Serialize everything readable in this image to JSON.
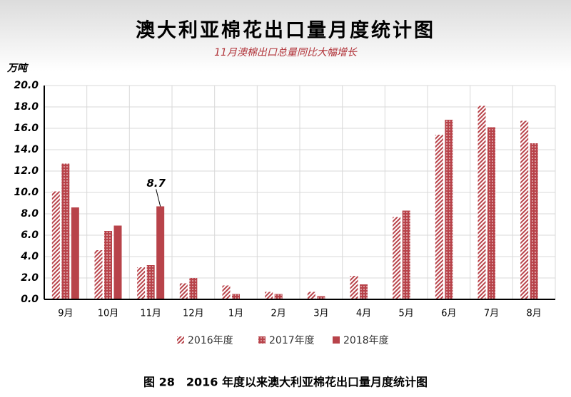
{
  "chart_data": {
    "type": "bar",
    "title": "澳大利亚棉花出口量月度统计图",
    "subtitle": "11月澳棉出口总量同比大幅增长",
    "y_label": "万吨",
    "caption": "图 28　2016 年度以来澳大利亚棉花出口量月度统计图",
    "categories": [
      "9月",
      "10月",
      "11月",
      "12月",
      "1月",
      "2月",
      "3月",
      "4月",
      "5月",
      "6月",
      "7月",
      "8月"
    ],
    "series": [
      {
        "name": "2016年度",
        "color": "#b8434a",
        "pattern": "hatch",
        "values": [
          10.1,
          4.6,
          3.0,
          1.5,
          1.3,
          0.7,
          0.7,
          2.2,
          7.7,
          15.4,
          18.1,
          16.7
        ]
      },
      {
        "name": "2017年度",
        "color": "#b8434a",
        "pattern": "dots",
        "values": [
          12.7,
          6.4,
          3.2,
          2.0,
          0.5,
          0.5,
          0.3,
          1.4,
          8.3,
          16.8,
          16.1,
          14.6
        ]
      },
      {
        "name": "2018年度",
        "color": "#b8434a",
        "pattern": "solid",
        "values": [
          8.6,
          6.9,
          8.7,
          null,
          null,
          null,
          null,
          null,
          null,
          null,
          null,
          null
        ]
      }
    ],
    "annotated_point": "chart_data.series.2.values.2",
    "ylim": [
      0,
      20
    ],
    "yticks": [
      {
        "value": 0,
        "label": "0.0"
      },
      {
        "value": 2,
        "label": "2.0"
      },
      {
        "value": 4,
        "label": "4.0"
      },
      {
        "value": 6,
        "label": "6.0"
      },
      {
        "value": 8,
        "label": "8.0"
      },
      {
        "value": 10,
        "label": "10.0"
      },
      {
        "value": 12,
        "label": "12.0"
      },
      {
        "value": 14,
        "label": "14.0"
      },
      {
        "value": 16,
        "label": "16.0"
      },
      {
        "value": 18,
        "label": "18.0"
      },
      {
        "value": 20,
        "label": "20.0"
      }
    ],
    "grid": true
  }
}
